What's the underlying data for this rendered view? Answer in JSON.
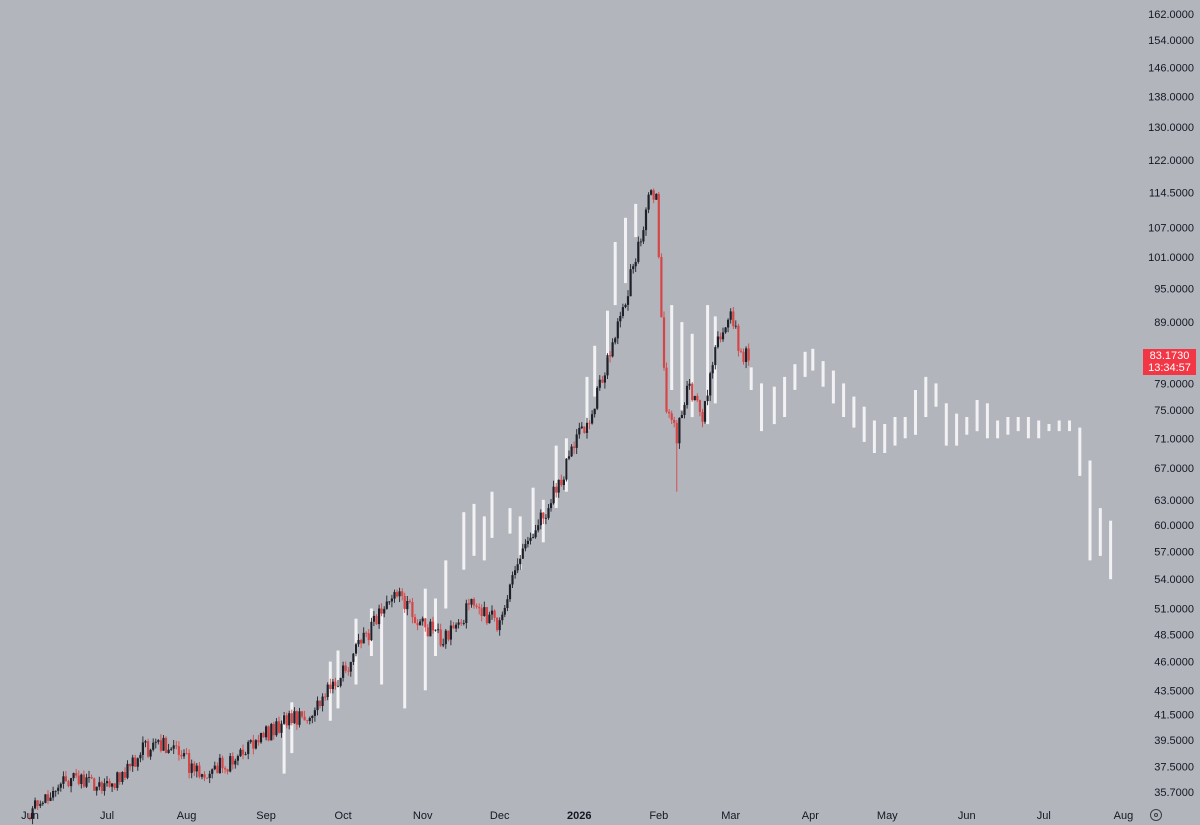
{
  "chart_data": {
    "type": "candlestick",
    "title": "",
    "xlabel": "",
    "ylabel": "",
    "x_tick_labels": [
      "Jun",
      "Jul",
      "Aug",
      "Sep",
      "Oct",
      "Nov",
      "Dec",
      "2026",
      "Feb",
      "Mar",
      "Apr",
      "May",
      "Jun",
      "Jul",
      "Aug"
    ],
    "x_tick_bold": [
      "2026"
    ],
    "y_tick_labels": [
      "162.0000",
      "154.0000",
      "146.0000",
      "138.0000",
      "130.0000",
      "122.0000",
      "114.5000",
      "107.0000",
      "101.0000",
      "95.0000",
      "89.0000",
      "79.0000",
      "75.0000",
      "71.0000",
      "67.0000",
      "63.0000",
      "60.0000",
      "57.0000",
      "54.0000",
      "51.0000",
      "48.5000",
      "46.0000",
      "43.5000",
      "41.5000",
      "39.5000",
      "37.5000",
      "35.7000"
    ],
    "ylim": [
      35.7,
      162
    ],
    "y_scale": "log",
    "grid": false,
    "last_price": "83.1730",
    "countdown": "13:34:57",
    "colors": {
      "background": "#b3b5bd",
      "up_candle": "#1e2129",
      "down_candle": "#d64545",
      "projection_bars": "#f2f2f4",
      "price_badge": "#f23645",
      "axis_text": "#131722"
    },
    "series": [
      {
        "kind": "ohlc",
        "x_range": [
          "2025-06-01",
          "2026-03-08"
        ],
        "waypoints": [
          [
            "2025-06-01",
            34.3
          ],
          [
            "2025-06-15",
            36.7
          ],
          [
            "2025-07-03",
            36.1
          ],
          [
            "2025-07-15",
            38.8
          ],
          [
            "2025-07-26",
            39.2
          ],
          [
            "2025-08-05",
            37.0
          ],
          [
            "2025-08-20",
            38.0
          ],
          [
            "2025-09-05",
            40.5
          ],
          [
            "2025-09-20",
            42.0
          ],
          [
            "2025-10-02",
            45.5
          ],
          [
            "2025-10-22",
            53.0
          ],
          [
            "2025-10-28",
            50.5
          ],
          [
            "2025-11-08",
            48.0
          ],
          [
            "2025-11-21",
            51.5
          ],
          [
            "2025-11-30",
            49.5
          ],
          [
            "2025-12-10",
            57.0
          ],
          [
            "2025-12-20",
            62.0
          ],
          [
            "2025-12-30",
            70.0
          ],
          [
            "2026-01-06",
            75.0
          ],
          [
            "2026-01-14",
            85.0
          ],
          [
            "2026-01-20",
            95.0
          ],
          [
            "2026-01-26",
            108.0
          ],
          [
            "2026-01-29",
            115.0
          ],
          [
            "2026-01-31",
            113.0
          ],
          [
            "2026-02-02",
            90.0
          ],
          [
            "2026-02-04",
            76.0
          ],
          [
            "2026-02-08",
            71.0
          ],
          [
            "2026-02-12",
            78.5
          ],
          [
            "2026-02-18",
            74.0
          ],
          [
            "2026-02-24",
            86.0
          ],
          [
            "2026-03-01",
            91.0
          ],
          [
            "2026-03-05",
            83.0
          ],
          [
            "2026-03-08",
            83.2
          ]
        ],
        "lows": [
          {
            "date": "2026-02-08",
            "value": 64.0
          }
        ]
      },
      {
        "kind": "projection",
        "bars": [
          [
            "2025-09-08",
            37.0,
            41.5
          ],
          [
            "2025-09-11",
            38.5,
            42.5
          ],
          [
            "2025-09-26",
            41.0,
            46.0
          ],
          [
            "2025-09-29",
            42.0,
            47.0
          ],
          [
            "2025-10-06",
            44.0,
            50.0
          ],
          [
            "2025-10-12",
            46.5,
            51.0
          ],
          [
            "2025-10-16",
            44.0,
            50.5
          ],
          [
            "2025-10-25",
            42.0,
            51.0
          ],
          [
            "2025-11-02",
            43.5,
            53.0
          ],
          [
            "2025-11-06",
            46.5,
            52.0
          ],
          [
            "2025-11-10",
            51.0,
            56.0
          ],
          [
            "2025-11-17",
            55.0,
            61.5
          ],
          [
            "2025-11-21",
            56.5,
            62.5
          ],
          [
            "2025-11-25",
            56.0,
            61.0
          ],
          [
            "2025-11-28",
            58.5,
            64.0
          ],
          [
            "2025-12-05",
            59.0,
            62.0
          ],
          [
            "2025-12-09",
            55.0,
            61.0
          ],
          [
            "2025-12-14",
            59.0,
            64.5
          ],
          [
            "2025-12-18",
            58.0,
            63.0
          ],
          [
            "2025-12-23",
            62.0,
            70.0
          ],
          [
            "2025-12-27",
            64.0,
            71.0
          ],
          [
            "2026-01-04",
            72.0,
            80.0
          ],
          [
            "2026-01-07",
            77.0,
            85.0
          ],
          [
            "2026-01-12",
            83.0,
            91.0
          ],
          [
            "2026-01-15",
            92.0,
            104.0
          ],
          [
            "2026-01-19",
            96.0,
            109.0
          ],
          [
            "2026-01-23",
            105.0,
            112.0
          ],
          [
            "2026-02-06",
            78.0,
            92.0
          ],
          [
            "2026-02-10",
            75.0,
            89.0
          ],
          [
            "2026-02-14",
            74.0,
            87.0
          ],
          [
            "2026-02-20",
            73.0,
            92.0
          ],
          [
            "2026-02-23",
            76.0,
            90.0
          ],
          [
            "2026-03-09",
            78.0,
            81.5
          ],
          [
            "2026-03-13",
            72.0,
            79.0
          ],
          [
            "2026-03-18",
            73.0,
            78.5
          ],
          [
            "2026-03-22",
            74.0,
            80.0
          ],
          [
            "2026-03-26",
            78.0,
            82.0
          ],
          [
            "2026-03-30",
            80.0,
            84.0
          ],
          [
            "2026-04-02",
            81.0,
            84.5
          ],
          [
            "2026-04-06",
            78.5,
            82.5
          ],
          [
            "2026-04-10",
            76.0,
            81.0
          ],
          [
            "2026-04-14",
            74.0,
            79.0
          ],
          [
            "2026-04-18",
            72.5,
            77.0
          ],
          [
            "2026-04-22",
            70.5,
            75.5
          ],
          [
            "2026-04-26",
            69.0,
            73.5
          ],
          [
            "2026-04-30",
            69.0,
            73.0
          ],
          [
            "2026-05-04",
            70.0,
            74.0
          ],
          [
            "2026-05-08",
            71.0,
            74.0
          ],
          [
            "2026-05-12",
            71.5,
            78.0
          ],
          [
            "2026-05-16",
            74.0,
            80.0
          ],
          [
            "2026-05-20",
            75.5,
            79.0
          ],
          [
            "2026-05-24",
            70.0,
            76.0
          ],
          [
            "2026-05-28",
            70.0,
            74.5
          ],
          [
            "2026-06-01",
            71.5,
            74.0
          ],
          [
            "2026-06-05",
            72.0,
            76.5
          ],
          [
            "2026-06-09",
            71.0,
            76.0
          ],
          [
            "2026-06-13",
            71.0,
            73.5
          ],
          [
            "2026-06-17",
            71.5,
            74.0
          ],
          [
            "2026-06-21",
            72.0,
            74.0
          ],
          [
            "2026-06-25",
            71.0,
            74.0
          ],
          [
            "2026-06-29",
            71.0,
            73.5
          ],
          [
            "2026-07-03",
            72.0,
            73.0
          ],
          [
            "2026-07-07",
            72.0,
            73.5
          ],
          [
            "2026-07-11",
            72.0,
            73.5
          ],
          [
            "2026-07-15",
            66.0,
            72.5
          ],
          [
            "2026-07-19",
            56.0,
            68.0
          ],
          [
            "2026-07-23",
            56.5,
            62.0
          ],
          [
            "2026-07-27",
            54.0,
            60.5
          ]
        ]
      }
    ]
  }
}
